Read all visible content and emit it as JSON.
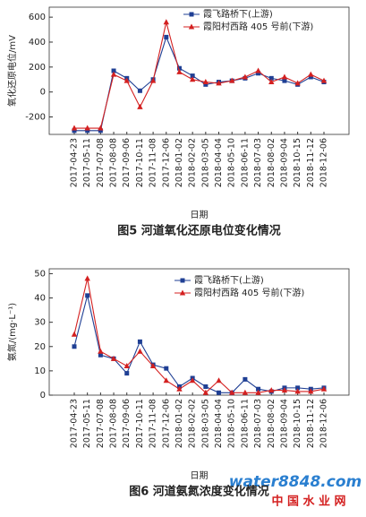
{
  "chart_data": [
    {
      "type": "line",
      "caption": "图5  河道氧化还原电位变化情况",
      "x_label": "日期",
      "y_label": "氧化还原电位/mV",
      "categories": [
        "2017-04-23",
        "2017-05-11",
        "2017-07-08",
        "2017-08-08",
        "2017-09-06",
        "2017-10-11",
        "2017-11-08",
        "2017-12-06",
        "2018-01-02",
        "2018-02-02",
        "2018-03-05",
        "2018-04-04",
        "2018-05-10",
        "2018-06-11",
        "2018-07-03",
        "2018-08-02",
        "2018-09-04",
        "2018-10-15",
        "2018-11-12",
        "2018-12-06"
      ],
      "series": [
        {
          "name": "霞飞路桥下(上游)",
          "color": "#1f3f94",
          "marker": "square",
          "values": [
            -310,
            -310,
            -310,
            170,
            110,
            10,
            100,
            440,
            190,
            130,
            60,
            80,
            90,
            110,
            150,
            110,
            90,
            60,
            120,
            80
          ]
        },
        {
          "name": "霞阳村西路 405 号前(下游)",
          "color": "#d42020",
          "marker": "triangle",
          "values": [
            -290,
            -290,
            -290,
            140,
            90,
            -120,
            90,
            560,
            160,
            100,
            80,
            70,
            90,
            120,
            170,
            80,
            120,
            70,
            140,
            90
          ]
        }
      ],
      "ylim": [
        -340,
        680
      ],
      "yticks": [
        -200,
        0,
        200,
        400,
        600
      ],
      "legend": "upper right"
    },
    {
      "type": "line",
      "caption": "图6  河道氨氮浓度变化情况",
      "x_label": "日期",
      "y_label": "氨氮/(mg·L⁻¹)",
      "categories": [
        "2017-04-23",
        "2017-05-11",
        "2017-07-08",
        "2017-08-08",
        "2017-09-06",
        "2017-10-11",
        "2017-11-08",
        "2017-12-06",
        "2018-01-02",
        "2018-02-02",
        "2018-03-05",
        "2018-04-04",
        "2018-05-10",
        "2018-06-11",
        "2018-07-03",
        "2018-08-02",
        "2018-09-04",
        "2018-10-15",
        "2018-11-12",
        "2018-12-06"
      ],
      "series": [
        {
          "name": "霞飞路桥下(上游)",
          "color": "#1f3f94",
          "marker": "square",
          "values": [
            20,
            41,
            16.5,
            15,
            9,
            22,
            12.5,
            11,
            3.5,
            7,
            3.5,
            1,
            1,
            6.5,
            2.5,
            1.5,
            3,
            3,
            2.5,
            3
          ]
        },
        {
          "name": "霞阳村西路 405 号前(下游)",
          "color": "#d42020",
          "marker": "triangle",
          "values": [
            25,
            48,
            18,
            15,
            12,
            18,
            12,
            6,
            2.5,
            6,
            1,
            6,
            1,
            1,
            1,
            2,
            2,
            1.5,
            1.5,
            2.5
          ]
        }
      ],
      "ylim": [
        0,
        52
      ],
      "yticks": [
        0,
        10,
        20,
        30,
        40,
        50
      ],
      "legend": "upper right"
    }
  ],
  "watermark": {
    "brand": "water8848.com",
    "site": "中 国 水 业 网"
  }
}
